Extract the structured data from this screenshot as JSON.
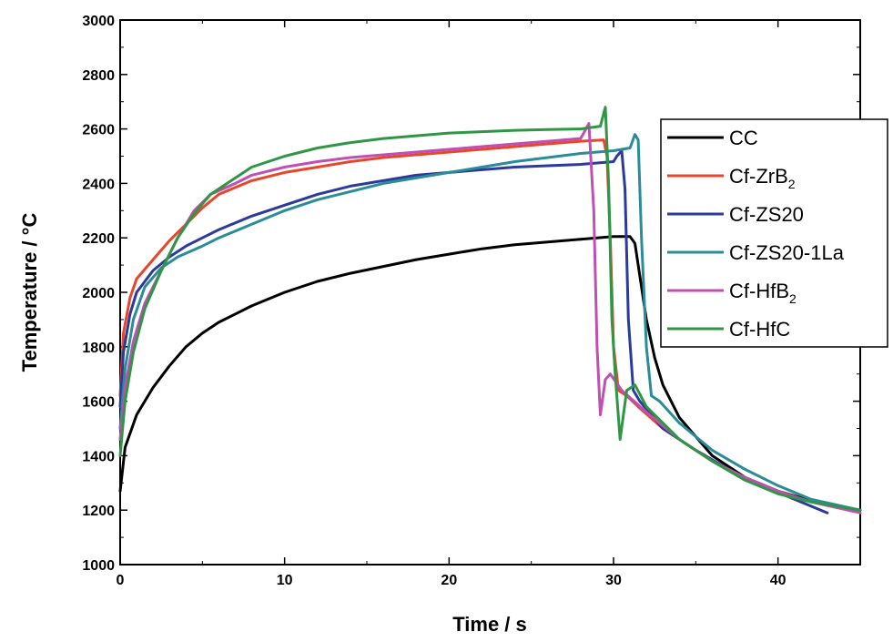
{
  "chart_data": {
    "type": "line",
    "xlabel": "Time / s",
    "ylabel": "Temperature / °C",
    "xlim": [
      0,
      45
    ],
    "ylim": [
      1000,
      3000
    ],
    "x_ticks": [
      "0",
      "10",
      "20",
      "30",
      "40"
    ],
    "y_ticks": [
      "1000",
      "1200",
      "1400",
      "1600",
      "1800",
      "2000",
      "2200",
      "2400",
      "2600",
      "2800",
      "3000"
    ],
    "grid": false,
    "legend_position": "top-right",
    "series": [
      {
        "name": "CC",
        "label_main": "CC",
        "label_sub": "",
        "color": "#000000",
        "points": [
          [
            0,
            1270
          ],
          [
            0.3,
            1430
          ],
          [
            1,
            1550
          ],
          [
            2,
            1650
          ],
          [
            3,
            1730
          ],
          [
            4,
            1800
          ],
          [
            5,
            1850
          ],
          [
            6,
            1890
          ],
          [
            8,
            1950
          ],
          [
            10,
            2000
          ],
          [
            12,
            2040
          ],
          [
            14,
            2070
          ],
          [
            16,
            2095
          ],
          [
            18,
            2120
          ],
          [
            20,
            2140
          ],
          [
            22,
            2160
          ],
          [
            24,
            2175
          ],
          [
            26,
            2185
          ],
          [
            28,
            2195
          ],
          [
            29,
            2200
          ],
          [
            30,
            2205
          ],
          [
            31,
            2205
          ],
          [
            31.3,
            2180
          ],
          [
            31.6,
            2060
          ],
          [
            32,
            1900
          ],
          [
            32.5,
            1760
          ],
          [
            33,
            1660
          ],
          [
            34,
            1540
          ],
          [
            36,
            1400
          ],
          [
            38,
            1320
          ],
          [
            40,
            1270
          ],
          [
            42,
            1235
          ],
          [
            44,
            1210
          ],
          [
            45,
            1200
          ]
        ]
      },
      {
        "name": "Cf-ZrB2",
        "label_main": "Cf-ZrB",
        "label_sub": "2",
        "color": "#e8462a",
        "points": [
          [
            0,
            1620
          ],
          [
            0.2,
            1850
          ],
          [
            0.6,
            1980
          ],
          [
            1,
            2050
          ],
          [
            2,
            2120
          ],
          [
            3,
            2190
          ],
          [
            4,
            2250
          ],
          [
            5,
            2310
          ],
          [
            6,
            2360
          ],
          [
            8,
            2410
          ],
          [
            10,
            2440
          ],
          [
            12,
            2460
          ],
          [
            14,
            2480
          ],
          [
            16,
            2495
          ],
          [
            18,
            2505
          ],
          [
            20,
            2515
          ],
          [
            22,
            2525
          ],
          [
            24,
            2535
          ],
          [
            26,
            2545
          ],
          [
            28,
            2555
          ],
          [
            29.4,
            2560
          ],
          [
            29.6,
            2500
          ],
          [
            29.8,
            2200
          ],
          [
            30,
            1800
          ],
          [
            30.3,
            1640
          ],
          [
            30.8,
            1620
          ],
          [
            31.5,
            1580
          ],
          [
            33,
            1500
          ],
          [
            35,
            1420
          ],
          [
            35.6,
            1400
          ]
        ]
      },
      {
        "name": "Cf-ZS20",
        "label_main": "Cf-ZS20",
        "label_sub": "",
        "color": "#2b3a9c",
        "points": [
          [
            0,
            1580
          ],
          [
            0.2,
            1780
          ],
          [
            0.6,
            1920
          ],
          [
            1,
            2000
          ],
          [
            2,
            2080
          ],
          [
            3,
            2130
          ],
          [
            4,
            2170
          ],
          [
            5,
            2200
          ],
          [
            6,
            2230
          ],
          [
            8,
            2280
          ],
          [
            10,
            2320
          ],
          [
            12,
            2360
          ],
          [
            14,
            2390
          ],
          [
            16,
            2410
          ],
          [
            18,
            2430
          ],
          [
            20,
            2440
          ],
          [
            22,
            2450
          ],
          [
            24,
            2460
          ],
          [
            26,
            2465
          ],
          [
            28,
            2470
          ],
          [
            30,
            2480
          ],
          [
            30.2,
            2500
          ],
          [
            30.5,
            2520
          ],
          [
            30.7,
            2380
          ],
          [
            30.9,
            1900
          ],
          [
            31.2,
            1640
          ],
          [
            31.6,
            1600
          ],
          [
            33,
            1500
          ],
          [
            35,
            1420
          ],
          [
            37,
            1350
          ],
          [
            39,
            1290
          ],
          [
            41,
            1240
          ],
          [
            43,
            1190
          ]
        ]
      },
      {
        "name": "Cf-ZS20-1La",
        "label_main": "Cf-ZS20-1La",
        "label_sub": "",
        "color": "#2a8c96",
        "points": [
          [
            0,
            1500
          ],
          [
            0.3,
            1720
          ],
          [
            0.8,
            1900
          ],
          [
            1.5,
            2020
          ],
          [
            2.5,
            2090
          ],
          [
            3.5,
            2130
          ],
          [
            5,
            2170
          ],
          [
            6,
            2200
          ],
          [
            8,
            2250
          ],
          [
            10,
            2300
          ],
          [
            12,
            2340
          ],
          [
            14,
            2370
          ],
          [
            16,
            2400
          ],
          [
            18,
            2420
          ],
          [
            20,
            2440
          ],
          [
            22,
            2460
          ],
          [
            24,
            2480
          ],
          [
            26,
            2495
          ],
          [
            28,
            2510
          ],
          [
            30,
            2520
          ],
          [
            31,
            2530
          ],
          [
            31.3,
            2580
          ],
          [
            31.5,
            2560
          ],
          [
            31.7,
            2200
          ],
          [
            32,
            1800
          ],
          [
            32.3,
            1620
          ],
          [
            32.8,
            1600
          ],
          [
            34,
            1520
          ],
          [
            36,
            1420
          ],
          [
            38,
            1350
          ],
          [
            40,
            1290
          ],
          [
            42,
            1240
          ],
          [
            45,
            1200
          ]
        ]
      },
      {
        "name": "Cf-HfB2",
        "label_main": "Cf-HfB",
        "label_sub": "2",
        "color": "#c04fb2",
        "points": [
          [
            0,
            1460
          ],
          [
            0.3,
            1650
          ],
          [
            0.8,
            1820
          ],
          [
            1.5,
            1960
          ],
          [
            2.5,
            2080
          ],
          [
            3.5,
            2200
          ],
          [
            4.5,
            2300
          ],
          [
            5.5,
            2360
          ],
          [
            7,
            2400
          ],
          [
            8,
            2430
          ],
          [
            10,
            2460
          ],
          [
            12,
            2480
          ],
          [
            14,
            2495
          ],
          [
            16,
            2505
          ],
          [
            18,
            2515
          ],
          [
            20,
            2525
          ],
          [
            22,
            2535
          ],
          [
            24,
            2545
          ],
          [
            26,
            2555
          ],
          [
            28,
            2565
          ],
          [
            28.5,
            2620
          ],
          [
            28.8,
            2300
          ],
          [
            29,
            1800
          ],
          [
            29.2,
            1550
          ],
          [
            29.5,
            1680
          ],
          [
            29.8,
            1700
          ],
          [
            30.5,
            1640
          ],
          [
            32,
            1560
          ],
          [
            34,
            1460
          ],
          [
            36,
            1380
          ],
          [
            38,
            1320
          ],
          [
            40,
            1270
          ],
          [
            42,
            1230
          ],
          [
            45,
            1190
          ]
        ]
      },
      {
        "name": "Cf-HfC",
        "label_main": "Cf-HfC",
        "label_sub": "",
        "color": "#2f9645",
        "points": [
          [
            0,
            1400
          ],
          [
            0.3,
            1600
          ],
          [
            0.8,
            1780
          ],
          [
            1.5,
            1940
          ],
          [
            2.5,
            2080
          ],
          [
            3.5,
            2200
          ],
          [
            4.5,
            2290
          ],
          [
            5.5,
            2360
          ],
          [
            7,
            2420
          ],
          [
            8,
            2460
          ],
          [
            10,
            2500
          ],
          [
            12,
            2530
          ],
          [
            14,
            2550
          ],
          [
            16,
            2565
          ],
          [
            18,
            2575
          ],
          [
            20,
            2585
          ],
          [
            22,
            2590
          ],
          [
            24,
            2595
          ],
          [
            26,
            2598
          ],
          [
            28,
            2600
          ],
          [
            29.2,
            2610
          ],
          [
            29.5,
            2680
          ],
          [
            29.7,
            2400
          ],
          [
            29.9,
            1900
          ],
          [
            30.1,
            1700
          ],
          [
            30.4,
            1460
          ],
          [
            30.8,
            1640
          ],
          [
            31.3,
            1660
          ],
          [
            32,
            1580
          ],
          [
            34,
            1460
          ],
          [
            36,
            1380
          ],
          [
            38,
            1310
          ],
          [
            40,
            1260
          ],
          [
            42,
            1230
          ],
          [
            45,
            1200
          ]
        ]
      }
    ]
  }
}
